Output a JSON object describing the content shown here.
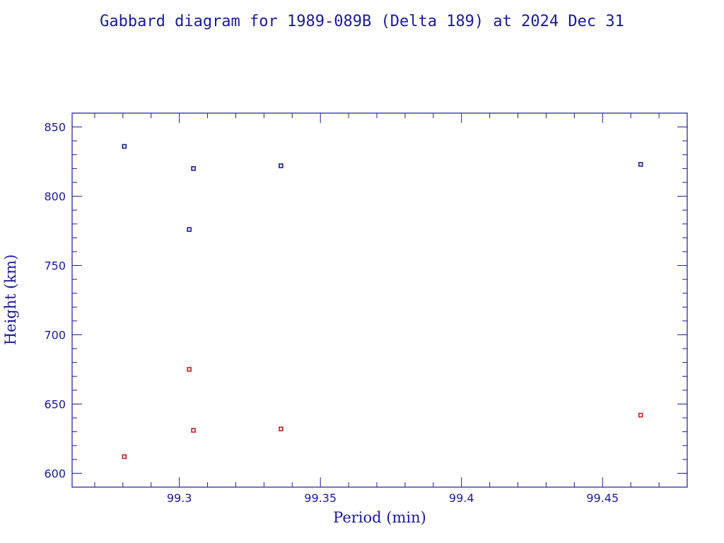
{
  "chart_data": {
    "type": "scatter",
    "title": "Gabbard diagram for 1989-089B (Delta 189) at 2024 Dec 31",
    "xlabel": "Period (min)",
    "ylabel": "Height (km)",
    "xlim": [
      99.262,
      99.48
    ],
    "ylim": [
      590,
      860
    ],
    "x_ticks": [
      {
        "value": 99.3,
        "label": "99.3"
      },
      {
        "value": 99.35,
        "label": "99.35"
      },
      {
        "value": 99.4,
        "label": "99.4"
      },
      {
        "value": 99.45,
        "label": "99.45"
      }
    ],
    "x_minor_step": 0.01,
    "y_ticks": [
      {
        "value": 600,
        "label": "600"
      },
      {
        "value": 650,
        "label": "650"
      },
      {
        "value": 700,
        "label": "700"
      },
      {
        "value": 750,
        "label": "750"
      },
      {
        "value": 800,
        "label": "800"
      },
      {
        "value": 850,
        "label": "850"
      }
    ],
    "y_minor_step": 10,
    "grid": false,
    "legend": "none",
    "series": [
      {
        "role": "apogee",
        "color": "#1a1a9e",
        "points": [
          {
            "x": 99.2805,
            "y": 836
          },
          {
            "x": 99.3035,
            "y": 776
          },
          {
            "x": 99.305,
            "y": 820
          },
          {
            "x": 99.336,
            "y": 822
          },
          {
            "x": 99.4635,
            "y": 823
          }
        ]
      },
      {
        "role": "perigee",
        "color": "#c81e1e",
        "points": [
          {
            "x": 99.2805,
            "y": 612
          },
          {
            "x": 99.3035,
            "y": 675
          },
          {
            "x": 99.305,
            "y": 631
          },
          {
            "x": 99.336,
            "y": 632
          },
          {
            "x": 99.4635,
            "y": 642
          }
        ]
      }
    ]
  }
}
